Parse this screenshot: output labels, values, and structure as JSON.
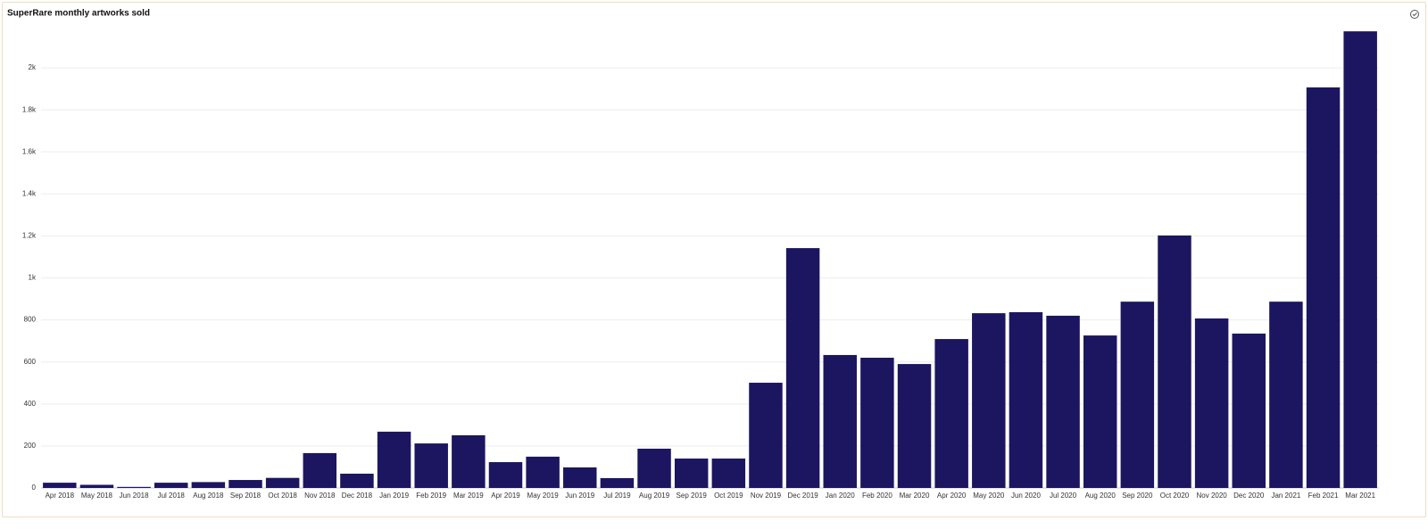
{
  "chart_data": {
    "type": "bar",
    "title": "SuperRare monthly artworks sold",
    "categories": [
      "Apr 2018",
      "May 2018",
      "Jun 2018",
      "Jul 2018",
      "Aug 2018",
      "Sep 2018",
      "Oct 2018",
      "Nov 2018",
      "Dec 2018",
      "Jan 2019",
      "Feb 2019",
      "Mar 2019",
      "Apr 2019",
      "May 2019",
      "Jun 2019",
      "Jul 2019",
      "Aug 2019",
      "Sep 2019",
      "Oct 2019",
      "Nov 2019",
      "Dec 2019",
      "Jan 2020",
      "Feb 2020",
      "Mar 2020",
      "Apr 2020",
      "May 2020",
      "Jun 2020",
      "Jul 2020",
      "Aug 2020",
      "Sep 2020",
      "Oct 2020",
      "Nov 2020",
      "Dec 2020",
      "Jan 2021",
      "Feb 2021",
      "Mar 2021"
    ],
    "values": [
      25,
      15,
      5,
      25,
      28,
      38,
      48,
      166,
      68,
      268,
      212,
      251,
      123,
      149,
      98,
      47,
      187,
      140,
      140,
      501,
      1142,
      633,
      620,
      590,
      709,
      832,
      837,
      820,
      726,
      887,
      1202,
      807,
      735,
      887,
      1907,
      2174
    ],
    "color": "#1c1660",
    "ylim": [
      0,
      2200
    ],
    "yticks": [
      0,
      200,
      400,
      600,
      800,
      {
        "value": 1000,
        "label": "1k"
      },
      {
        "value": 1200,
        "label": "1.2k"
      },
      {
        "value": 1400,
        "label": "1.4k"
      },
      {
        "value": 1600,
        "label": "1.6k"
      },
      {
        "value": 1800,
        "label": "1.8k"
      },
      {
        "value": 2000,
        "label": "2k"
      }
    ],
    "grid": true
  }
}
